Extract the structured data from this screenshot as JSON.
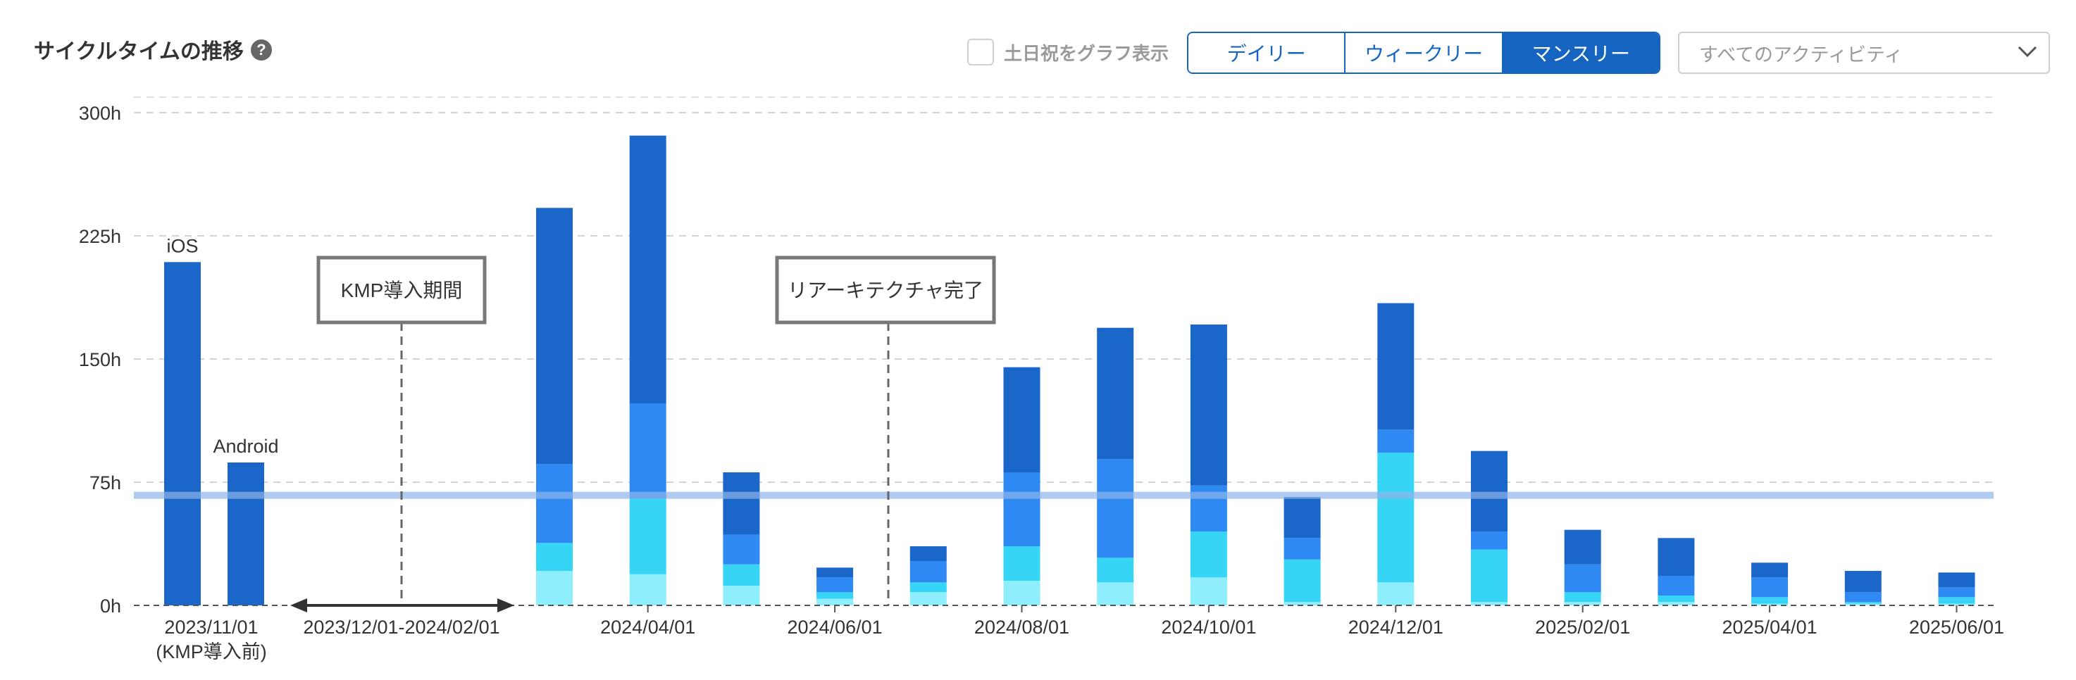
{
  "header": {
    "title": "サイクルタイムの推移",
    "help_icon": "question-circle-icon"
  },
  "controls": {
    "weekend_label": "土日祝をグラフ表示",
    "weekend_checked": false,
    "period_tabs": [
      "デイリー",
      "ウィークリー",
      "マンスリー"
    ],
    "active_tab": "マンスリー",
    "activity_select": "すべてのアクティビティ",
    "accent_color": "#1565c0"
  },
  "chart_data": {
    "type": "bar",
    "stacked": true,
    "ylim": [
      0,
      300
    ],
    "y_ticks": [
      "0h",
      "75h",
      "150h",
      "225h",
      "300h"
    ],
    "grid": true,
    "reference_line": 67,
    "x_labels": [
      "2024/04/01",
      "2024/06/01",
      "2024/08/01",
      "2024/10/01",
      "2024/12/01",
      "2025/02/01",
      "2025/04/01",
      "2025/06/01"
    ],
    "baseline_bars": [
      {
        "label": "iOS",
        "value": 209
      },
      {
        "label": "Android",
        "value": 87
      }
    ],
    "baseline_x_label": "2023/11/01",
    "baseline_x_sublabel": "(KMP導入前)",
    "gap_label": "2023/12/01-2024/02/01",
    "annotations": [
      "KMP導入期間",
      "リアーキテクチャ完了"
    ],
    "categories": [
      "2024/03",
      "2024/04",
      "2024/05",
      "2024/06",
      "2024/07",
      "2024/08",
      "2024/09",
      "2024/10",
      "2024/11",
      "2024/12",
      "2025/01",
      "2025/02",
      "2025/03",
      "2025/04",
      "2025/05",
      "2025/06"
    ],
    "series_colors": [
      "#8feefc",
      "#36d4f5",
      "#2e89f3",
      "#1a66c9"
    ],
    "series": [
      {
        "values": [
          21,
          19,
          12,
          4,
          8,
          15,
          14,
          17,
          2,
          14,
          2,
          2,
          2,
          1,
          1,
          1
        ]
      },
      {
        "values": [
          17,
          46,
          13,
          4,
          6,
          21,
          15,
          28,
          26,
          79,
          32,
          6,
          4,
          4,
          1,
          4
        ]
      },
      {
        "values": [
          48,
          58,
          18,
          9,
          13,
          45,
          60,
          28,
          13,
          14,
          11,
          17,
          12,
          12,
          6,
          6
        ]
      },
      {
        "values": [
          156,
          163,
          38,
          6,
          9,
          64,
          80,
          98,
          25,
          77,
          49,
          21,
          23,
          9,
          13,
          9
        ]
      }
    ]
  }
}
